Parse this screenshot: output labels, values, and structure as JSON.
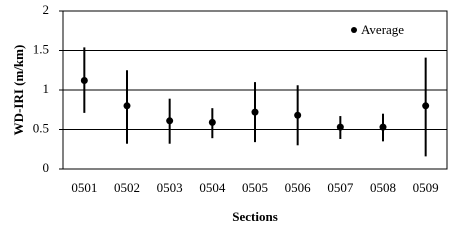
{
  "chart_data": {
    "type": "errorbar",
    "y_label": "WD-IRI (m/km)",
    "x_label": "Sections",
    "categories": [
      "0501",
      "0502",
      "0503",
      "0504",
      "0505",
      "0506",
      "0507",
      "0508",
      "0509"
    ],
    "series": [
      {
        "name": "Average",
        "color": "#000000",
        "values": [
          1.12,
          0.8,
          0.61,
          0.59,
          0.72,
          0.68,
          0.53,
          0.53,
          0.8
        ],
        "low": [
          0.71,
          0.32,
          0.32,
          0.39,
          0.34,
          0.3,
          0.38,
          0.35,
          0.16
        ],
        "high": [
          1.54,
          1.25,
          0.89,
          0.77,
          1.1,
          1.06,
          0.67,
          0.7,
          1.41
        ]
      }
    ],
    "ylim": [
      0,
      2
    ],
    "yticks": [
      0,
      0.5,
      1,
      1.5,
      2
    ],
    "grid": true,
    "legend": "top-right"
  }
}
